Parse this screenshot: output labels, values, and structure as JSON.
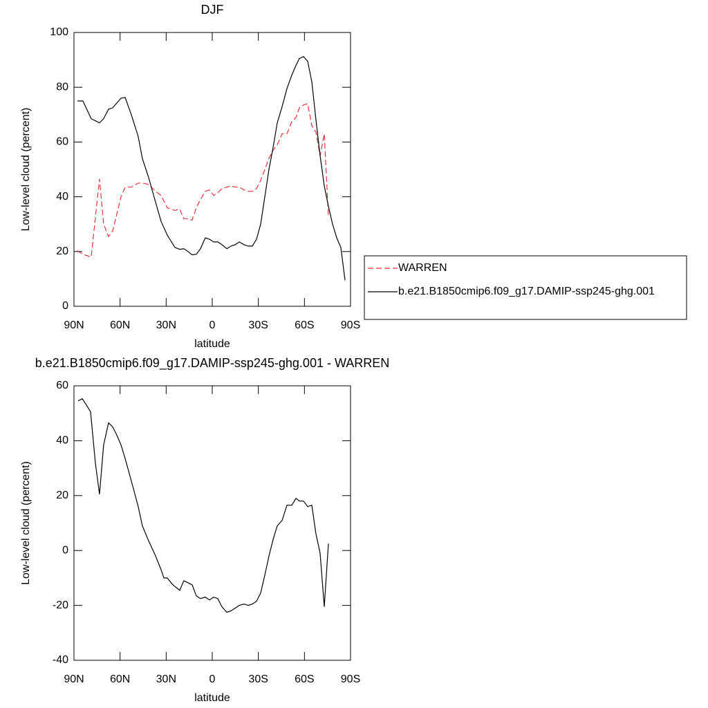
{
  "chart_data": [
    {
      "type": "line",
      "title": "DJF",
      "xlabel": "latitude",
      "ylabel": "Low-level cloud (percent)",
      "x": [
        87.8,
        84.2,
        78.8,
        73.4,
        70.7,
        67.5,
        64.8,
        59.4,
        56.7,
        52.7,
        48.2,
        45.5,
        41.4,
        36.9,
        33.3,
        29.3,
        24.3,
        21.2,
        18.5,
        15.8,
        13.1,
        10.4,
        7.7,
        4.5,
        1.8,
        -0.9,
        -3.6,
        -6.3,
        -9.5,
        -12.2,
        -14.9,
        -17.6,
        -20.7,
        -23.4,
        -26.1,
        -28.8,
        -31.5,
        -34.2,
        -36.9,
        -39.6,
        -42.3,
        -45.5,
        -48.6,
        -51.8,
        -54.5,
        -56.7,
        -59.4,
        -62.1,
        -64.8,
        -67.5,
        -70.2,
        -72.9,
        -75.6,
        -78.3,
        -81,
        -83.7,
        -86.4
      ],
      "series": [
        {
          "name": "WARREN",
          "color": "#e8313a",
          "line_style": "dashed",
          "values": [
            20.3,
            19,
            18,
            46.5,
            30,
            25.5,
            27.5,
            40,
            43.5,
            43.5,
            45,
            45,
            44.5,
            42,
            40.5,
            36,
            35,
            35.5,
            32,
            32,
            31.5,
            36,
            39,
            42,
            42.5,
            40.5,
            41.5,
            43,
            43.5,
            44,
            43.5,
            43.5,
            42.5,
            42,
            42,
            43,
            46,
            50,
            54,
            57,
            59,
            63,
            63,
            67.5,
            69,
            72.5,
            73.5,
            74,
            66,
            63.5,
            55,
            63,
            33,
            null,
            null,
            null,
            null
          ]
        },
        {
          "name": "b.e21.B1850cmip6.f09_g17.DAMIP-ssp245-ghg.001",
          "color": "#000000",
          "line_style": "solid",
          "values": [
            75,
            75,
            68.5,
            67,
            68.5,
            72,
            72.5,
            76,
            76.3,
            70,
            62,
            54,
            47,
            38,
            31,
            26,
            21.5,
            20.8,
            21,
            20,
            18.8,
            19,
            21,
            25,
            24.5,
            23.5,
            23.5,
            22.5,
            21,
            22,
            22.5,
            23.5,
            22.5,
            22,
            22,
            24.5,
            30,
            40,
            50,
            58,
            67,
            73,
            79.5,
            84.5,
            88,
            90.5,
            91.2,
            89.5,
            82,
            68,
            55,
            44,
            36.5,
            30,
            25,
            21.5,
            9.5
          ]
        }
      ],
      "xlim": [
        90,
        -90
      ],
      "xticks": [
        {
          "value": 90,
          "label": "90N"
        },
        {
          "value": 60,
          "label": "60N"
        },
        {
          "value": 30,
          "label": "30N"
        },
        0,
        {
          "value": -30,
          "label": "30S"
        },
        {
          "value": -60,
          "label": "60S"
        },
        {
          "value": -90,
          "label": "90S"
        }
      ],
      "ylim": [
        0,
        100
      ],
      "yticks": [
        0,
        20,
        40,
        60,
        80,
        100
      ],
      "legend": "right"
    },
    {
      "type": "line",
      "title": "b.e21.B1850cmip6.f09_g17.DAMIP-ssp245-ghg.001 - WARREN",
      "xlabel": "latitude",
      "ylabel": "Low-level cloud (percent)",
      "x": [
        87.3,
        84.6,
        81.9,
        79.2,
        76.1,
        73.4,
        70.7,
        67.5,
        64.8,
        62.1,
        59.4,
        56.7,
        54,
        51.3,
        48.2,
        45.5,
        41.4,
        36.9,
        33.3,
        31.5,
        29.3,
        25.7,
        21.2,
        18.5,
        13.1,
        10.4,
        7.7,
        4.5,
        1.8,
        -0.9,
        -3.6,
        -6.3,
        -9.5,
        -12.2,
        -14.9,
        -17.6,
        -20.7,
        -23.4,
        -26.1,
        -28.8,
        -31.5,
        -34.2,
        -36.9,
        -39.6,
        -42.3,
        -45.5,
        -48.6,
        -51.8,
        -54.5,
        -56.7,
        -59.4,
        -62.1,
        -64.8,
        -67.5,
        -70.2,
        -72.9,
        -75.6
      ],
      "values": [
        54.5,
        55.3,
        53,
        50.5,
        32,
        20.5,
        38.5,
        46.5,
        45,
        42,
        38.5,
        33.5,
        28,
        22.5,
        16,
        9,
        3.5,
        -2,
        -7,
        -10,
        -10,
        -12.5,
        -14.5,
        -11,
        -12.5,
        -16.5,
        -17.5,
        -17,
        -18,
        -17,
        -17.5,
        -20.5,
        -22.5,
        -22,
        -21,
        -20,
        -19.5,
        -20,
        -19.5,
        -18.5,
        -15.5,
        -9,
        -2,
        4,
        9,
        11,
        16.5,
        16.5,
        19,
        18,
        18,
        16,
        16.5,
        6,
        -1,
        -20.5,
        2.5
      ],
      "color": "#000000",
      "xlim": [
        90,
        -90
      ],
      "xticks": [
        {
          "value": 90,
          "label": "90N"
        },
        {
          "value": 60,
          "label": "60N"
        },
        {
          "value": 30,
          "label": "30N"
        },
        0,
        {
          "value": -30,
          "label": "30S"
        },
        {
          "value": -60,
          "label": "60S"
        },
        {
          "value": -90,
          "label": "90S"
        }
      ],
      "ylim": [
        -40,
        60
      ],
      "yticks": [
        -40,
        -20,
        0,
        20,
        40,
        60
      ]
    }
  ]
}
